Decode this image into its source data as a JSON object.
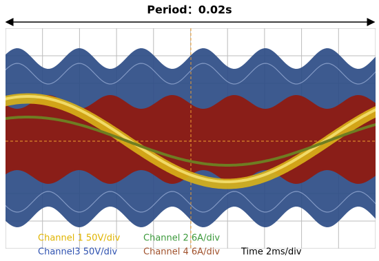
{
  "header": {
    "title": "Period：0.02s"
  },
  "labels": {
    "channel1": "Channel 1 50V/div",
    "channel2": "Channel 2 6A/div",
    "channel3": "Channel3 50V/div",
    "channel4": "Channel 4 6A/div",
    "time": "Time 2ms/div"
  }
}
